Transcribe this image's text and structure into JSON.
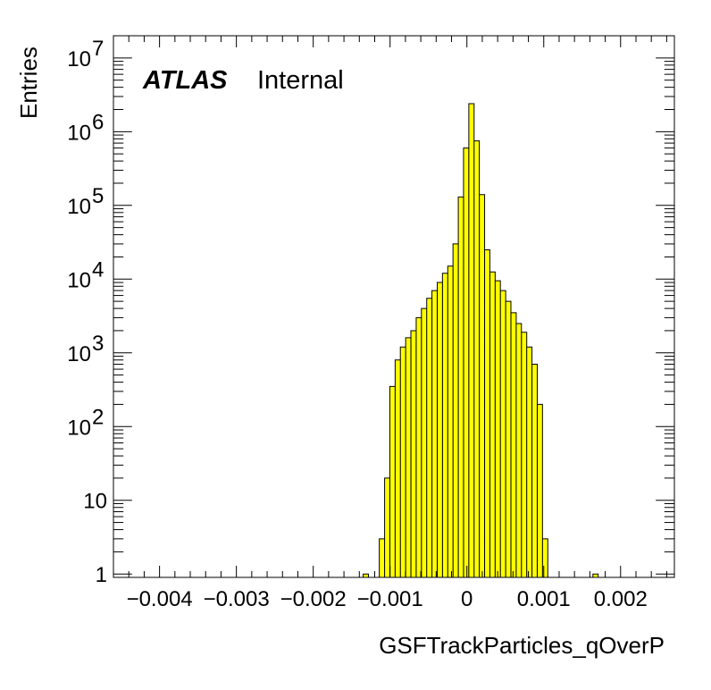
{
  "chart_data": {
    "type": "histogram",
    "title": "",
    "xlabel": "GSFTrackParticles_qOverP",
    "ylabel": "Entries",
    "label": {
      "experiment": "ATLAS",
      "status": "Internal"
    },
    "xlim": [
      -0.0046,
      0.0027
    ],
    "ylim": [
      0.9,
      20000000
    ],
    "log_y": true,
    "grid": false,
    "fill_color": "#ffff00",
    "line_color": "#000000",
    "x_ticks": [
      {
        "value": -0.004,
        "label": "−0.004"
      },
      {
        "value": -0.003,
        "label": "−0.003"
      },
      {
        "value": -0.002,
        "label": "−0.002"
      },
      {
        "value": -0.001,
        "label": "−0.001"
      },
      {
        "value": 0,
        "label": "0"
      },
      {
        "value": 0.001,
        "label": "0.001"
      },
      {
        "value": 0.002,
        "label": "0.002"
      }
    ],
    "y_ticks": [
      {
        "value": 1,
        "base": "1",
        "exp": ""
      },
      {
        "value": 10,
        "base": "10",
        "exp": ""
      },
      {
        "value": 100,
        "base": "10",
        "exp": "2"
      },
      {
        "value": 1000,
        "base": "10",
        "exp": "3"
      },
      {
        "value": 10000,
        "base": "10",
        "exp": "4"
      },
      {
        "value": 100000,
        "base": "10",
        "exp": "5"
      },
      {
        "value": 1000000,
        "base": "10",
        "exp": "6"
      },
      {
        "value": 10000000,
        "base": "10",
        "exp": "7"
      }
    ],
    "bin_width": 6.85e-05,
    "bins": [
      {
        "x_low": -0.00135,
        "value": 1
      },
      {
        "x_low": -0.00114,
        "value": 3
      },
      {
        "x_low": -0.001071,
        "value": 20
      },
      {
        "x_low": -0.001003,
        "value": 350
      },
      {
        "x_low": -0.000934,
        "value": 800
      },
      {
        "x_low": -0.000866,
        "value": 1200
      },
      {
        "x_low": -0.000797,
        "value": 1600
      },
      {
        "x_low": -0.000729,
        "value": 2000
      },
      {
        "x_low": -0.00066,
        "value": 3000
      },
      {
        "x_low": -0.000592,
        "value": 4000
      },
      {
        "x_low": -0.000523,
        "value": 5500
      },
      {
        "x_low": -0.000455,
        "value": 7000
      },
      {
        "x_low": -0.000386,
        "value": 9000
      },
      {
        "x_low": -0.000318,
        "value": 12000
      },
      {
        "x_low": -0.000249,
        "value": 15000
      },
      {
        "x_low": -0.000181,
        "value": 30000
      },
      {
        "x_low": -0.000112,
        "value": 130000
      },
      {
        "x_low": -4.4e-05,
        "value": 600000
      },
      {
        "x_low": 2.5e-05,
        "value": 2400000
      },
      {
        "x_low": 9.3e-05,
        "value": 750000
      },
      {
        "x_low": 0.000162,
        "value": 140000
      },
      {
        "x_low": 0.00023,
        "value": 25000
      },
      {
        "x_low": 0.000299,
        "value": 12500
      },
      {
        "x_low": 0.000367,
        "value": 9500
      },
      {
        "x_low": 0.000436,
        "value": 7000
      },
      {
        "x_low": 0.000504,
        "value": 5000
      },
      {
        "x_low": 0.000573,
        "value": 3500
      },
      {
        "x_low": 0.000641,
        "value": 2500
      },
      {
        "x_low": 0.00071,
        "value": 1900
      },
      {
        "x_low": 0.000778,
        "value": 1200
      },
      {
        "x_low": 0.000847,
        "value": 700
      },
      {
        "x_low": 0.000915,
        "value": 200
      },
      {
        "x_low": 0.000984,
        "value": 3
      },
      {
        "x_low": 0.00164,
        "value": 1
      }
    ]
  }
}
